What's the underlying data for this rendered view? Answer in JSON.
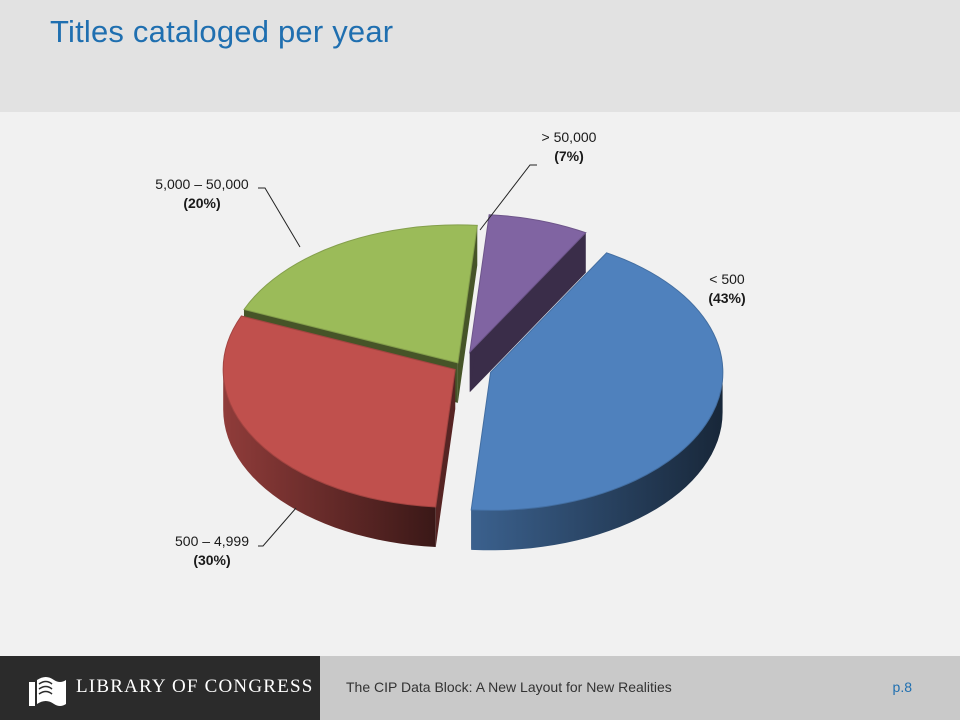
{
  "slide": {
    "title": "Titles cataloged per year"
  },
  "chart_data": {
    "type": "pie",
    "title": "",
    "slices": [
      {
        "category": "< 500",
        "value": 43,
        "pct_label": "(43%)",
        "color": "#4f81bd"
      },
      {
        "category": "500 – 4,999",
        "value": 30,
        "pct_label": "(30%)",
        "color": "#c0504d"
      },
      {
        "category": "5,000 – 50,000",
        "value": 20,
        "pct_label": "(20%)",
        "color": "#9bbb59"
      },
      {
        "category": "> 50,000",
        "value": 7,
        "pct_label": "(7%)",
        "color": "#8064a2"
      }
    ],
    "style": "3d-exploded"
  },
  "footer": {
    "logo_text": "LIBRARY OF CONGRESS",
    "logo_icon": "book-icon",
    "presentation_title": "The CIP Data Block:  A New Layout for New Realities",
    "page": "p.8"
  }
}
